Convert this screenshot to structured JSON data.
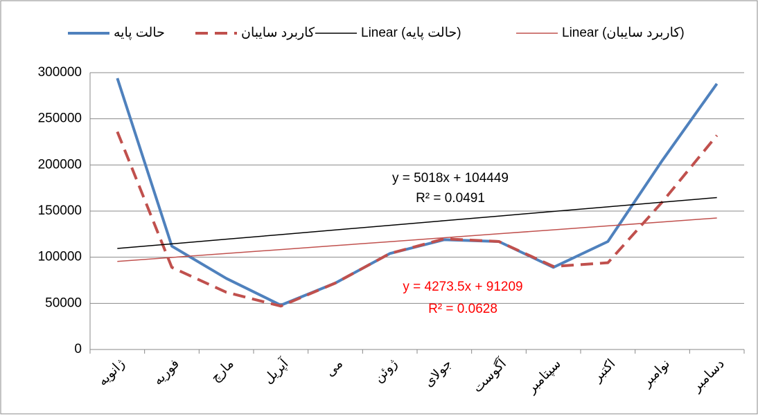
{
  "chart_data": {
    "type": "line",
    "categories": [
      "ژانویه",
      "فوریه",
      "مارچ",
      "آپریل",
      "می",
      "ژوئن",
      "جولای",
      "آگوست",
      "سپتامبر",
      "اکتبر",
      "نوامبر",
      "دسامبر"
    ],
    "series": [
      {
        "name": "حالت پایه",
        "color": "#4f81bd",
        "dash": "solid",
        "width": 4,
        "values": [
          294000,
          112000,
          77000,
          48000,
          72000,
          104000,
          119000,
          117000,
          89000,
          117000,
          205000,
          288000
        ]
      },
      {
        "name": "کاربرد سایبان",
        "color": "#c0504d",
        "dash": "dashed",
        "width": 4,
        "values": [
          236000,
          89000,
          62000,
          47000,
          72000,
          104000,
          120000,
          117000,
          90000,
          94000,
          160000,
          232000
        ]
      },
      {
        "name": "Linear (حالت پایه)",
        "color": "#000000",
        "dash": "solid",
        "width": 1.5,
        "values": [
          109467,
          114485,
          119503,
          124521,
          129539,
          134557,
          139575,
          144593,
          149611,
          154629,
          159647,
          164665
        ]
      },
      {
        "name": "Linear (کاربرد سایبان)",
        "color": "#c0504d",
        "dash": "solid",
        "width": 1.5,
        "values": [
          95482.5,
          99756,
          104029.5,
          108303,
          112576.5,
          116850,
          121123.5,
          125397,
          129670.5,
          133944,
          138217.5,
          142491
        ]
      }
    ],
    "annotations": [
      {
        "text": "y = 5018x + 104449",
        "color": "#000000"
      },
      {
        "text": "R² = 0.0491",
        "color": "#000000"
      },
      {
        "text": "y = 4273.5x + 91209",
        "color": "#ff0000"
      },
      {
        "text": "R² = 0.0628",
        "color": "#ff0000"
      }
    ],
    "ylim": [
      0,
      300000
    ],
    "yticks": [
      0,
      50000,
      100000,
      150000,
      200000,
      250000,
      300000
    ],
    "grid": true,
    "legend": "top"
  }
}
